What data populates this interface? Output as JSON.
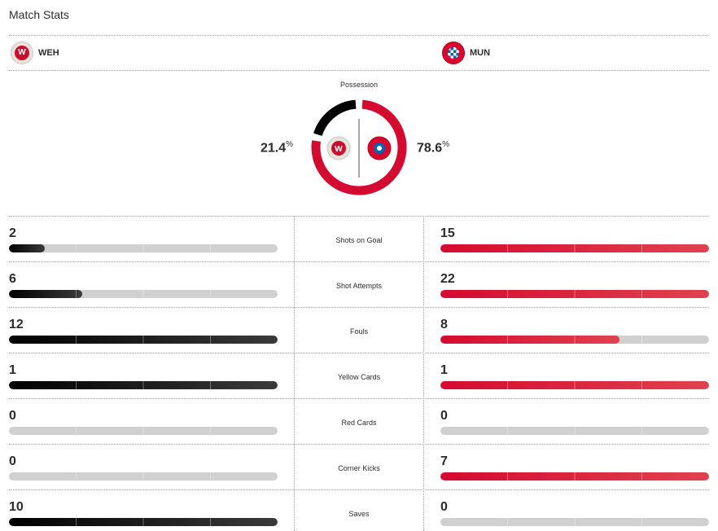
{
  "title": "Match Stats",
  "teams": {
    "home": {
      "abbr": "WEH",
      "color": "#000000",
      "logo_icon": "sv-wehen-wiesbaden-logo"
    },
    "away": {
      "abbr": "MUN",
      "color": "#d50a30",
      "logo_icon": "fc-bayern-munchen-logo"
    }
  },
  "possession": {
    "label": "Possession",
    "home_value": 21.4,
    "away_value": 78.6,
    "home_text": "21.4",
    "away_text": "78.6",
    "unit": "%"
  },
  "stats": [
    {
      "label": "Shots on Goal",
      "home": "2",
      "away": "15"
    },
    {
      "label": "Shot Attempts",
      "home": "6",
      "away": "22"
    },
    {
      "label": "Fouls",
      "home": "12",
      "away": "8"
    },
    {
      "label": "Yellow Cards",
      "home": "1",
      "away": "1"
    },
    {
      "label": "Red Cards",
      "home": "0",
      "away": "0"
    },
    {
      "label": "Corner Kicks",
      "home": "0",
      "away": "7"
    },
    {
      "label": "Saves",
      "home": "10",
      "away": "0"
    }
  ],
  "colors": {
    "home": "#000000",
    "away": "#d50a30",
    "track": "#d0d0d0"
  }
}
